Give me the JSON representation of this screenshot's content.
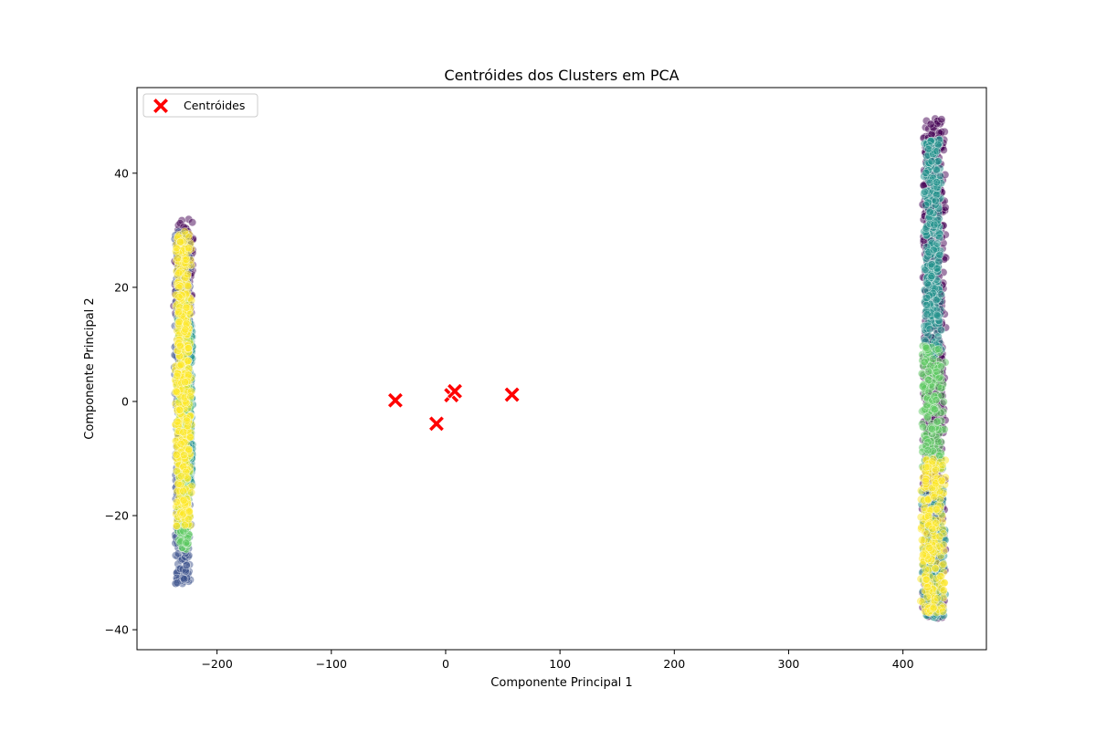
{
  "chart_data": {
    "type": "scatter",
    "title": "Centróides dos Clusters em PCA",
    "xlabel": "Componente Principal 1",
    "ylabel": "Componente Principal 2",
    "xlim": [
      -270,
      473
    ],
    "ylim": [
      -43.5,
      55
    ],
    "xticks": [
      -200,
      -100,
      0,
      100,
      200,
      300,
      400
    ],
    "xtick_labels": [
      "−200",
      "−100",
      "0",
      "100",
      "200",
      "300",
      "400"
    ],
    "yticks": [
      -40,
      -20,
      0,
      20,
      40
    ],
    "ytick_labels": [
      "−40",
      "−20",
      "0",
      "20",
      "40"
    ],
    "grid": false,
    "legend": {
      "placement": "top-left",
      "entries": [
        "Centróides"
      ]
    },
    "cluster_colors": [
      "#440154",
      "#3b528b",
      "#21918c",
      "#5ec962",
      "#fde725"
    ],
    "point_alpha": 0.5,
    "centroids": {
      "name": "Centróides",
      "color": "#ff0000",
      "marker": "X",
      "points": [
        {
          "x": -44,
          "y": 0.2
        },
        {
          "x": -8,
          "y": -3.9
        },
        {
          "x": 5,
          "y": 1.1
        },
        {
          "x": 8,
          "y": 1.8
        },
        {
          "x": 58,
          "y": 1.2
        }
      ]
    },
    "point_groups": [
      {
        "x_range": [
          -238,
          -220
        ],
        "y_range": [
          15,
          32
        ],
        "cluster": 0
      },
      {
        "x_range": [
          -238,
          -222
        ],
        "y_range": [
          -32,
          30
        ],
        "cluster": 1
      },
      {
        "x_range": [
          -228,
          -221
        ],
        "y_range": [
          -15,
          14
        ],
        "cluster": 2
      },
      {
        "x_range": [
          -235,
          -223
        ],
        "y_range": [
          -26,
          18
        ],
        "cluster": 3
      },
      {
        "x_range": [
          -237,
          -222
        ],
        "y_range": [
          -22,
          30
        ],
        "cluster": 4
      },
      {
        "x_range": [
          416,
          438
        ],
        "y_range": [
          -38,
          50
        ],
        "cluster": 0
      },
      {
        "x_range": [
          418,
          434
        ],
        "y_range": [
          8,
          46
        ],
        "cluster": 2
      },
      {
        "x_range": [
          416,
          438
        ],
        "y_range": [
          -38,
          -15
        ],
        "cluster": 2
      },
      {
        "x_range": [
          414,
          438
        ],
        "y_range": [
          -12,
          10
        ],
        "cluster": 3
      },
      {
        "x_range": [
          414,
          438
        ],
        "y_range": [
          -37,
          -10
        ],
        "cluster": 4
      }
    ]
  }
}
